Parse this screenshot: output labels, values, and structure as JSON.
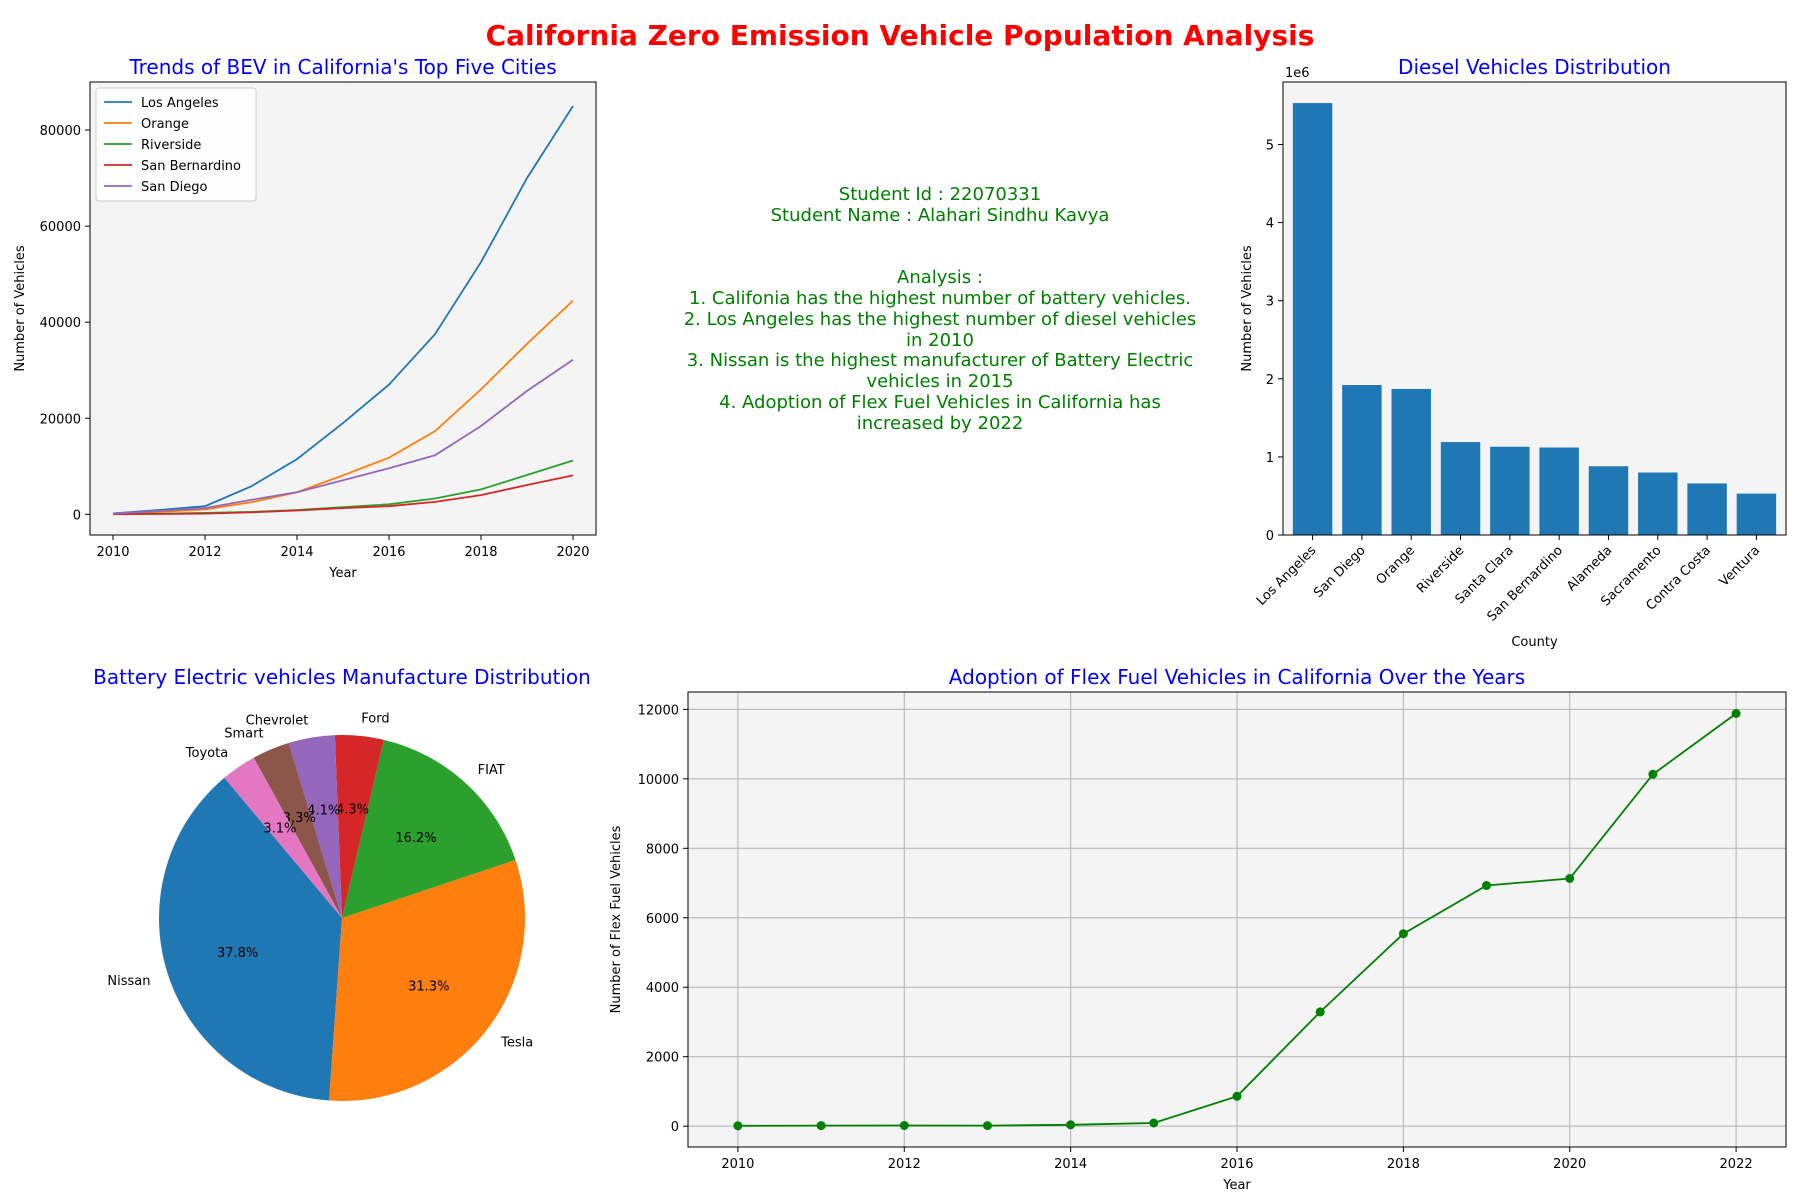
{
  "figure": {
    "title": "California Zero Emission Vehicle Population Analysis",
    "title_color": "#ff0000",
    "panel_title_color": "#0000ff"
  },
  "info": {
    "color": "#008000",
    "lines": [
      "Student Id : 22070331",
      "Student Name : Alahari Sindhu Kavya",
      "",
      "",
      "Analysis :",
      " 1. Califonia has the highest number of battery vehicles.",
      "2. Los Angeles has the highest number of diesel vehicles",
      "in 2010",
      "3. Nissan is the highest manufacturer of Battery Electric",
      "vehicles in 2015",
      "4. Adoption of Flex Fuel Vehicles in California has",
      "increased by 2022"
    ]
  },
  "chart_data": [
    {
      "type": "line",
      "title": "Trends of BEV in California's Top Five Cities",
      "xlabel": "Year",
      "ylabel": "Number of Vehicles",
      "x": [
        2010,
        2011,
        2012,
        2013,
        2014,
        2015,
        2016,
        2017,
        2018,
        2019,
        2020
      ],
      "xlim": [
        2009.5,
        2020.5
      ],
      "ylim": [
        -4300,
        90000
      ],
      "xticks": [
        2010,
        2012,
        2014,
        2016,
        2018,
        2020
      ],
      "yticks": [
        0,
        20000,
        40000,
        60000,
        80000
      ],
      "legend": "upper left",
      "grid": false,
      "series": [
        {
          "name": "Los Angeles",
          "color": "#1f77b4",
          "values": [
            200,
            900,
            1700,
            5800,
            11500,
            19000,
            27000,
            37500,
            52500,
            70000,
            85000
          ]
        },
        {
          "name": "Orange",
          "color": "#ff7f0e",
          "values": [
            100,
            500,
            1000,
            2500,
            4600,
            8100,
            11800,
            17300,
            26000,
            35500,
            44500
          ]
        },
        {
          "name": "Riverside",
          "color": "#2ca02c",
          "values": [
            50,
            150,
            300,
            500,
            900,
            1500,
            2100,
            3300,
            5200,
            8200,
            11200
          ]
        },
        {
          "name": "San Bernardino",
          "color": "#d62728",
          "values": [
            20,
            80,
            150,
            400,
            800,
            1300,
            1700,
            2600,
            4000,
            6100,
            8100
          ]
        },
        {
          "name": "San Diego",
          "color": "#9467bd",
          "values": [
            150,
            700,
            1300,
            3000,
            4600,
            7100,
            9600,
            12300,
            18400,
            25700,
            32200
          ]
        }
      ]
    },
    {
      "type": "bar",
      "title": "Diesel Vehicles Distribution",
      "xlabel": "County",
      "ylabel": "Number of Vehicles",
      "scale_label": "1e6",
      "categories": [
        "Los Angeles",
        "San Diego",
        "Orange",
        "Riverside",
        "Santa Clara",
        "San Bernardino",
        "Alameda",
        "Sacramento",
        "Contra Costa",
        "Ventura"
      ],
      "values": [
        5.53,
        1.92,
        1.87,
        1.19,
        1.13,
        1.12,
        0.88,
        0.8,
        0.66,
        0.53
      ],
      "ylim": [
        0,
        5.8
      ],
      "yticks": [
        0,
        1,
        2,
        3,
        4,
        5
      ],
      "color": "#1f77b4",
      "grid": false
    },
    {
      "type": "pie",
      "title": "Battery Electric vehicles Manufacture Distribution",
      "labels": [
        "Nissan",
        "Tesla",
        "FIAT",
        "Ford",
        "Chevrolet",
        "Smart",
        "Toyota"
      ],
      "values": [
        37.8,
        31.3,
        16.2,
        4.3,
        4.1,
        3.3,
        3.1
      ],
      "pct_labels": [
        "37.8%",
        "31.3%",
        "16.2%",
        "4.3%",
        "4.1%",
        "3.3%",
        "3.1%"
      ],
      "colors": [
        "#1f77b4",
        "#ff7f0e",
        "#2ca02c",
        "#d62728",
        "#9467bd",
        "#8c564b",
        "#e377c2"
      ],
      "start_angle_deg": 130,
      "direction": "counterclockwise"
    },
    {
      "type": "line",
      "title": "Adoption of Flex Fuel Vehicles in California Over the Years",
      "xlabel": "Year",
      "ylabel": "Number of Flex Fuel Vehicles",
      "x": [
        2010,
        2011,
        2012,
        2013,
        2014,
        2015,
        2016,
        2017,
        2018,
        2019,
        2020,
        2021,
        2022
      ],
      "xlim": [
        2009.4,
        2022.6
      ],
      "ylim": [
        -600,
        12500
      ],
      "xticks": [
        2010,
        2012,
        2014,
        2016,
        2018,
        2020,
        2022
      ],
      "yticks": [
        0,
        2000,
        4000,
        6000,
        8000,
        10000,
        12000
      ],
      "grid": true,
      "markers": true,
      "series": [
        {
          "name": "",
          "color": "#008000",
          "values": [
            10,
            15,
            20,
            15,
            40,
            90,
            860,
            3290,
            5540,
            6930,
            7130,
            10130,
            11880
          ]
        }
      ]
    }
  ]
}
